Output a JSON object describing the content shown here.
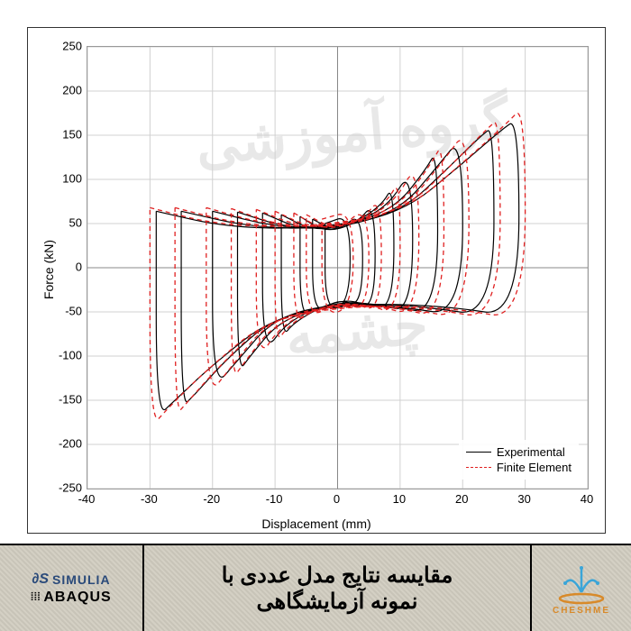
{
  "chart": {
    "type": "line",
    "xlabel": "Displacement (mm)",
    "ylabel": "Force (kN)",
    "xlim": [
      -40,
      40
    ],
    "ylim": [
      -250,
      250
    ],
    "xtick_step": 10,
    "ytick_step": 50,
    "xticks": [
      -40,
      -30,
      -20,
      -10,
      0,
      10,
      20,
      30,
      40
    ],
    "yticks": [
      -250,
      -200,
      -150,
      -100,
      -50,
      0,
      50,
      100,
      150,
      200,
      250
    ],
    "grid_color": "#d0d0d0",
    "background_color": "#ffffff",
    "border_color": "#999999",
    "label_fontsize": 14,
    "tick_fontsize": 13,
    "legend": {
      "position": "bottom-right-inside",
      "items": [
        {
          "label": "Experimental",
          "color": "#000000",
          "dash": "solid",
          "width": 1.2
        },
        {
          "label": "Finite Element",
          "color": "#e02020",
          "dash": "4,3",
          "width": 1.2
        }
      ]
    },
    "series": [
      {
        "name": "Experimental",
        "color": "#000000",
        "dash": "none",
        "width": 1.2,
        "loops": [
          [
            [
              -2,
              50
            ],
            [
              2,
              60
            ],
            [
              2,
              -40
            ],
            [
              -2,
              -50
            ],
            [
              -2,
              50
            ]
          ],
          [
            [
              -4,
              55
            ],
            [
              0,
              40
            ],
            [
              4,
              65
            ],
            [
              4,
              -45
            ],
            [
              0,
              -35
            ],
            [
              -4,
              -55
            ],
            [
              -4,
              55
            ]
          ],
          [
            [
              -6,
              58
            ],
            [
              -2,
              40
            ],
            [
              3,
              50
            ],
            [
              6,
              75
            ],
            [
              6,
              -48
            ],
            [
              2,
              -35
            ],
            [
              -3,
              -45
            ],
            [
              -6,
              -58
            ],
            [
              -6,
              58
            ]
          ],
          [
            [
              -9,
              60
            ],
            [
              -4,
              42
            ],
            [
              2,
              48
            ],
            [
              7,
              70
            ],
            [
              9,
              95
            ],
            [
              9,
              -50
            ],
            [
              4,
              -38
            ],
            [
              -2,
              -42
            ],
            [
              -7,
              -62
            ],
            [
              -9,
              -80
            ],
            [
              -9,
              60
            ]
          ],
          [
            [
              -12,
              62
            ],
            [
              -6,
              44
            ],
            [
              1,
              46
            ],
            [
              8,
              68
            ],
            [
              12,
              115
            ],
            [
              12,
              -52
            ],
            [
              6,
              -40
            ],
            [
              -1,
              -40
            ],
            [
              -8,
              -60
            ],
            [
              -12,
              -100
            ],
            [
              -12,
              62
            ]
          ],
          [
            [
              -16,
              63
            ],
            [
              -8,
              45
            ],
            [
              0,
              45
            ],
            [
              9,
              66
            ],
            [
              14,
              110
            ],
            [
              16,
              135
            ],
            [
              16,
              -54
            ],
            [
              8,
              -42
            ],
            [
              0,
              -40
            ],
            [
              -9,
              -58
            ],
            [
              -14,
              -100
            ],
            [
              -16,
              -120
            ],
            [
              -16,
              63
            ]
          ],
          [
            [
              -20,
              64
            ],
            [
              -10,
              46
            ],
            [
              0,
              44
            ],
            [
              10,
              65
            ],
            [
              16,
              115
            ],
            [
              20,
              150
            ],
            [
              20,
              -55
            ],
            [
              10,
              -44
            ],
            [
              0,
              -40
            ],
            [
              -10,
              -56
            ],
            [
              -16,
              -105
            ],
            [
              -20,
              -138
            ],
            [
              -20,
              64
            ]
          ],
          [
            [
              -25,
              64
            ],
            [
              -14,
              46
            ],
            [
              -2,
              44
            ],
            [
              10,
              62
            ],
            [
              18,
              115
            ],
            [
              23,
              150
            ],
            [
              25,
              160
            ],
            [
              25,
              -56
            ],
            [
              14,
              -44
            ],
            [
              2,
              -40
            ],
            [
              -10,
              -55
            ],
            [
              -18,
              -105
            ],
            [
              -23,
              -145
            ],
            [
              -25,
              -158
            ],
            [
              -25,
              64
            ]
          ],
          [
            [
              -29,
              64
            ],
            [
              -18,
              46
            ],
            [
              -4,
              44
            ],
            [
              10,
              60
            ],
            [
              20,
              118
            ],
            [
              26,
              155
            ],
            [
              29,
              170
            ],
            [
              29,
              -56
            ],
            [
              18,
              -44
            ],
            [
              4,
              -40
            ],
            [
              -10,
              -54
            ],
            [
              -20,
              -110
            ],
            [
              -26,
              -150
            ],
            [
              -29,
              -170
            ],
            [
              -29,
              64
            ]
          ]
        ]
      },
      {
        "name": "Finite Element",
        "color": "#e02020",
        "dash": "5,4",
        "width": 1.3,
        "loops": [
          [
            [
              -2.5,
              55
            ],
            [
              2.5,
              65
            ],
            [
              2.5,
              -45
            ],
            [
              -2.5,
              -55
            ],
            [
              -2.5,
              55
            ]
          ],
          [
            [
              -5,
              60
            ],
            [
              0,
              42
            ],
            [
              5,
              72
            ],
            [
              5,
              -50
            ],
            [
              0,
              -38
            ],
            [
              -5,
              -60
            ],
            [
              -5,
              60
            ]
          ],
          [
            [
              -7,
              62
            ],
            [
              -2,
              42
            ],
            [
              4,
              54
            ],
            [
              7,
              82
            ],
            [
              7,
              -52
            ],
            [
              2,
              -38
            ],
            [
              -4,
              -48
            ],
            [
              -7,
              -64
            ],
            [
              -7,
              62
            ]
          ],
          [
            [
              -10,
              64
            ],
            [
              -4,
              44
            ],
            [
              3,
              50
            ],
            [
              8,
              75
            ],
            [
              10,
              102
            ],
            [
              10,
              -54
            ],
            [
              4,
              -40
            ],
            [
              -3,
              -44
            ],
            [
              -8,
              -66
            ],
            [
              -10,
              -88
            ],
            [
              -10,
              64
            ]
          ],
          [
            [
              -13,
              66
            ],
            [
              -6,
              46
            ],
            [
              2,
              48
            ],
            [
              9,
              72
            ],
            [
              13,
              124
            ],
            [
              13,
              -56
            ],
            [
              6,
              -42
            ],
            [
              -2,
              -42
            ],
            [
              -9,
              -64
            ],
            [
              -13,
              -108
            ],
            [
              -13,
              66
            ]
          ],
          [
            [
              -17,
              67
            ],
            [
              -9,
              47
            ],
            [
              1,
              47
            ],
            [
              10,
              70
            ],
            [
              15,
              118
            ],
            [
              17,
              144
            ],
            [
              17,
              -58
            ],
            [
              9,
              -44
            ],
            [
              -1,
              -42
            ],
            [
              -10,
              -62
            ],
            [
              -15,
              -108
            ],
            [
              -17,
              -128
            ],
            [
              -17,
              67
            ]
          ],
          [
            [
              -21,
              68
            ],
            [
              -11,
              48
            ],
            [
              1,
              46
            ],
            [
              11,
              69
            ],
            [
              17,
              122
            ],
            [
              21,
              160
            ],
            [
              21,
              -59
            ],
            [
              11,
              -46
            ],
            [
              -1,
              -42
            ],
            [
              -11,
              -60
            ],
            [
              -17,
              -112
            ],
            [
              -21,
              -148
            ],
            [
              -21,
              68
            ]
          ],
          [
            [
              -26,
              68
            ],
            [
              -15,
              48
            ],
            [
              -2,
              46
            ],
            [
              11,
              66
            ],
            [
              19,
              122
            ],
            [
              24,
              158
            ],
            [
              26,
              170
            ],
            [
              26,
              -60
            ],
            [
              15,
              -46
            ],
            [
              2,
              -42
            ],
            [
              -11,
              -58
            ],
            [
              -19,
              -112
            ],
            [
              -24,
              -152
            ],
            [
              -26,
              -168
            ],
            [
              -26,
              68
            ]
          ],
          [
            [
              -30,
              68
            ],
            [
              -19,
              48
            ],
            [
              -4,
              46
            ],
            [
              11,
              64
            ],
            [
              21,
              125
            ],
            [
              27,
              163
            ],
            [
              30,
              185
            ],
            [
              30,
              -60
            ],
            [
              19,
              -46
            ],
            [
              4,
              -42
            ],
            [
              -11,
              -57
            ],
            [
              -21,
              -116
            ],
            [
              -27,
              -158
            ],
            [
              -30,
              -182
            ],
            [
              -30,
              68
            ]
          ]
        ]
      }
    ]
  },
  "watermark": {
    "lines": [
      "گروه آموزشی",
      "چشمه"
    ],
    "color": "#ececec"
  },
  "bottom": {
    "simulia": "SIMULIA",
    "abaqus": "ABAQUS",
    "center_line1": "مقایسه نتایج مدل عددی با",
    "center_line2": "نمونه آزمایشگاهی",
    "cheshme": "CHESHME",
    "band_bg": "#cdc9bd",
    "text_color": "#1a1a1a",
    "logo_colors": {
      "top": "#3aa5d8",
      "ring": "#d88a2a"
    }
  }
}
